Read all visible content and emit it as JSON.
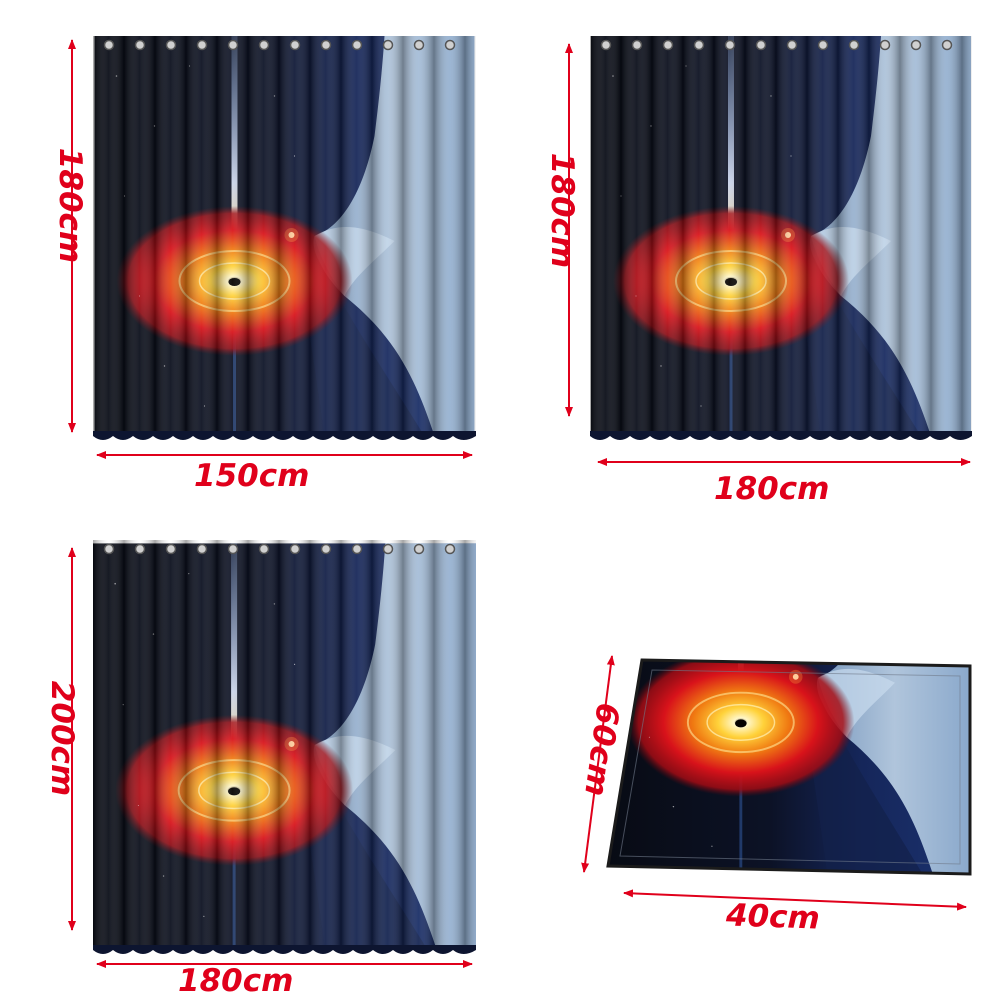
{
  "colors": {
    "dimension_red": "#e0001b",
    "space_black": "#0a0d18",
    "space_navy": "#13214a",
    "ice_blue": "#a8c2dc",
    "disk_red": "#d8121a",
    "disk_orange": "#f07a12",
    "disk_yellow": "#ffd23a"
  },
  "products": [
    {
      "kind": "shower-curtain",
      "width_label": "150cm",
      "height_label": "180cm"
    },
    {
      "kind": "shower-curtain",
      "width_label": "180cm",
      "height_label": "180cm"
    },
    {
      "kind": "shower-curtain",
      "width_label": "180cm",
      "height_label": "200cm"
    },
    {
      "kind": "bath-mat",
      "width_label": "40cm",
      "height_label": "60cm"
    }
  ]
}
